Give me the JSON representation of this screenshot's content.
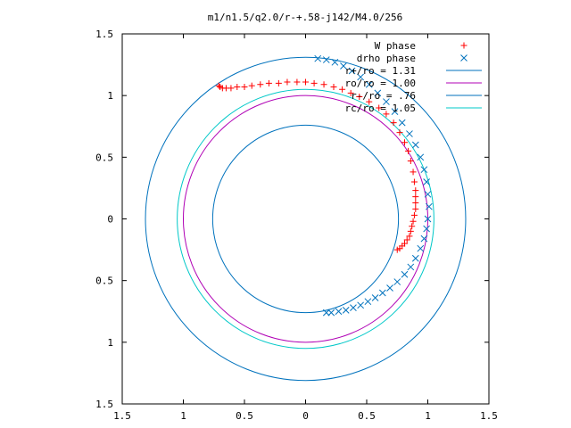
{
  "chart_data": {
    "type": "scatter",
    "title": "m1/n1.5/q2.0/r-+.58-j142/M4.0/256",
    "xlim": [
      -1.5,
      1.5
    ],
    "ylim": [
      -1.5,
      1.5
    ],
    "xticks": [
      -1.5,
      -1,
      -0.5,
      0,
      0.5,
      1,
      1.5
    ],
    "yticks": [
      -1.5,
      -1,
      -0.5,
      0,
      0.5,
      1,
      1.5
    ],
    "xtick_labels": [
      "1.5",
      "1",
      "0.5",
      "0",
      "0.5",
      "1",
      "1.5"
    ],
    "ytick_labels": [
      "1.5",
      "1",
      "0.5",
      "0",
      "0.5",
      "1",
      "1.5"
    ],
    "grid": false,
    "legend_position": "top-right",
    "circles": [
      {
        "name": "r+/ro = 1.31",
        "radius": 1.31,
        "color": "#0072bd"
      },
      {
        "name": "ro/ro = 1.00",
        "radius": 1.0,
        "color": "#b000b5"
      },
      {
        "name": "r-/ro = .76",
        "radius": 0.76,
        "color": "#0072bd"
      },
      {
        "name": "rc/ro = 1.05",
        "radius": 1.05,
        "color": "#00c8c8"
      }
    ],
    "series": [
      {
        "name": "W phase",
        "marker": "plus",
        "color": "#ff0000",
        "points": [
          [
            0.75,
            -0.25
          ],
          [
            0.77,
            -0.24
          ],
          [
            0.79,
            -0.22
          ],
          [
            0.81,
            -0.2
          ],
          [
            0.83,
            -0.17
          ],
          [
            0.85,
            -0.14
          ],
          [
            0.86,
            -0.1
          ],
          [
            0.87,
            -0.06
          ],
          [
            0.88,
            -0.02
          ],
          [
            0.89,
            0.03
          ],
          [
            0.9,
            0.08
          ],
          [
            0.9,
            0.13
          ],
          [
            0.9,
            0.18
          ],
          [
            0.9,
            0.23
          ],
          [
            0.89,
            0.3
          ],
          [
            0.88,
            0.38
          ],
          [
            0.86,
            0.47
          ],
          [
            0.84,
            0.55
          ],
          [
            0.81,
            0.62
          ],
          [
            0.77,
            0.7
          ],
          [
            0.72,
            0.78
          ],
          [
            0.66,
            0.85
          ],
          [
            0.6,
            0.9
          ],
          [
            0.52,
            0.95
          ],
          [
            0.44,
            0.99
          ],
          [
            0.37,
            1.02
          ],
          [
            0.3,
            1.05
          ],
          [
            0.23,
            1.07
          ],
          [
            0.15,
            1.09
          ],
          [
            0.07,
            1.1
          ],
          [
            0.0,
            1.11
          ],
          [
            -0.07,
            1.11
          ],
          [
            -0.15,
            1.11
          ],
          [
            -0.22,
            1.1
          ],
          [
            -0.3,
            1.1
          ],
          [
            -0.37,
            1.09
          ],
          [
            -0.44,
            1.08
          ],
          [
            -0.5,
            1.07
          ],
          [
            -0.56,
            1.07
          ],
          [
            -0.61,
            1.06
          ],
          [
            -0.65,
            1.06
          ],
          [
            -0.68,
            1.06
          ],
          [
            -0.7,
            1.07
          ],
          [
            -0.71,
            1.08
          ]
        ]
      },
      {
        "name": "drho phase",
        "marker": "x",
        "color": "#0072bd",
        "points": [
          [
            0.1,
            1.3
          ],
          [
            0.17,
            1.29
          ],
          [
            0.24,
            1.27
          ],
          [
            0.31,
            1.24
          ],
          [
            0.38,
            1.2
          ],
          [
            0.45,
            1.15
          ],
          [
            0.52,
            1.09
          ],
          [
            0.59,
            1.02
          ],
          [
            0.66,
            0.95
          ],
          [
            0.73,
            0.87
          ],
          [
            0.79,
            0.78
          ],
          [
            0.85,
            0.69
          ],
          [
            0.9,
            0.6
          ],
          [
            0.94,
            0.5
          ],
          [
            0.97,
            0.4
          ],
          [
            0.99,
            0.3
          ],
          [
            1.0,
            0.2
          ],
          [
            1.01,
            0.1
          ],
          [
            1.0,
            0.0
          ],
          [
            0.99,
            -0.08
          ],
          [
            0.97,
            -0.16
          ],
          [
            0.94,
            -0.24
          ],
          [
            0.9,
            -0.32
          ],
          [
            0.86,
            -0.39
          ],
          [
            0.81,
            -0.45
          ],
          [
            0.75,
            -0.51
          ],
          [
            0.69,
            -0.56
          ],
          [
            0.63,
            -0.6
          ],
          [
            0.57,
            -0.64
          ],
          [
            0.51,
            -0.67
          ],
          [
            0.45,
            -0.7
          ],
          [
            0.39,
            -0.72
          ],
          [
            0.33,
            -0.74
          ],
          [
            0.27,
            -0.75
          ],
          [
            0.21,
            -0.76
          ],
          [
            0.17,
            -0.76
          ]
        ]
      }
    ]
  }
}
